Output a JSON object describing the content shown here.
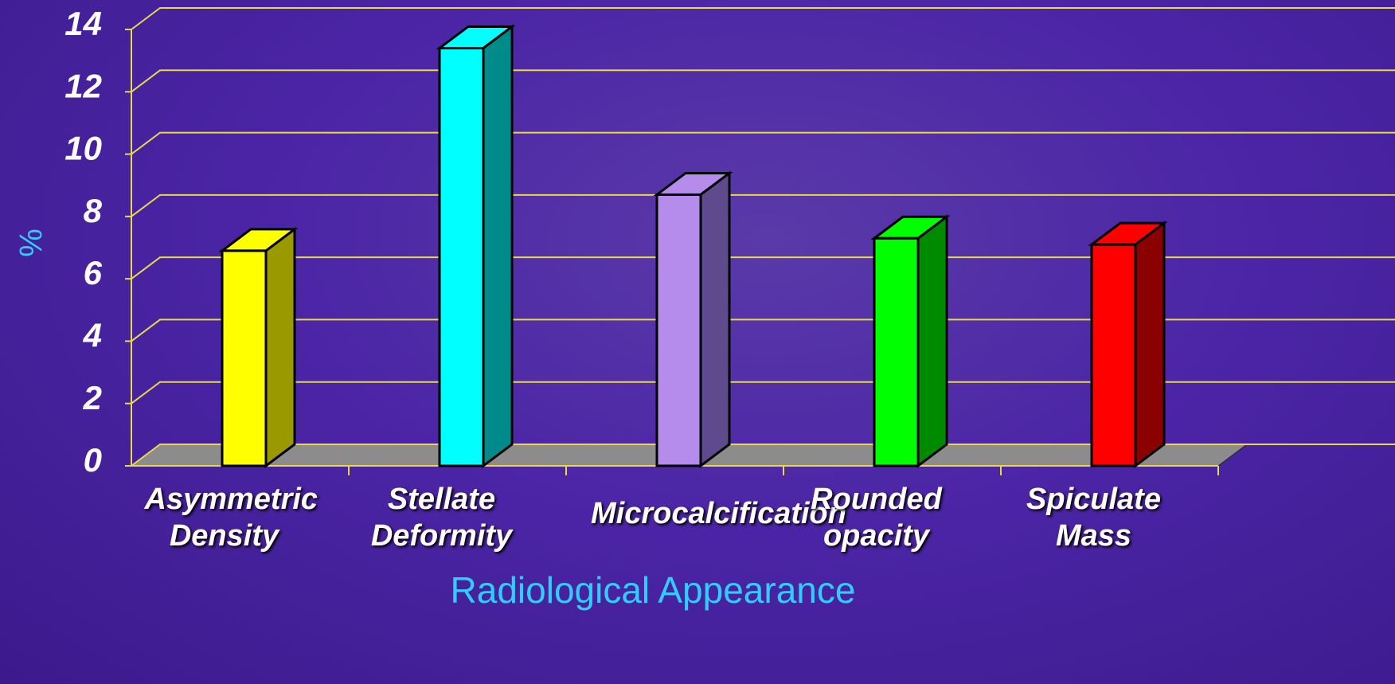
{
  "chart_data": {
    "type": "bar3d",
    "categories": [
      "Asymmetric Density",
      "Stellate Deformity",
      "Microcalcification",
      "Rounded opacity",
      "Spiculate Mass"
    ],
    "values": [
      6.9,
      13.4,
      8.7,
      7.3,
      7.1
    ],
    "colors": [
      "#ffff00",
      "#00ffff",
      "#b58ceb",
      "#00ff00",
      "#ff0000"
    ],
    "side_colors": [
      "#9a9a00",
      "#008b8b",
      "#5e4a8c",
      "#008a00",
      "#8b0000"
    ],
    "ylabel": "%",
    "xlabel": "Radiological Appearance",
    "ylim": [
      0,
      14
    ],
    "yticks": [
      0,
      2,
      4,
      6,
      8,
      10,
      12,
      14
    ],
    "grid": true
  }
}
